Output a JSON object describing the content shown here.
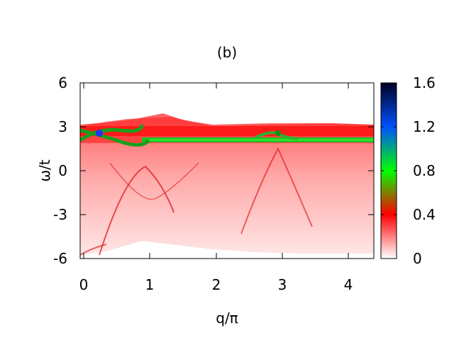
{
  "chart_data": {
    "type": "heatmap",
    "title": "(b)",
    "xlabel": "q/π",
    "ylabel": "ω/t",
    "xlim": [
      -0.05,
      4.35
    ],
    "ylim": [
      -6,
      6
    ],
    "x_ticks": [
      "0",
      "1",
      "2",
      "3",
      "4"
    ],
    "y_ticks": [
      "6",
      "3",
      "0",
      "-3",
      "-6"
    ],
    "colorbar": {
      "range": [
        0,
        1.6
      ],
      "ticks": [
        "1.6",
        "1.2",
        "0.8",
        "0.4",
        "0"
      ],
      "colors": [
        "#ffffff",
        "#ff0000",
        "#00ff00",
        "#0000ff",
        "#000033"
      ]
    },
    "features": {
      "flat_band_omega": 2.0,
      "upper_band_omega": 2.5,
      "continuum_omega_range": [
        -6,
        3
      ],
      "crossing_points_q": [
        0.25,
        2.95
      ]
    }
  }
}
